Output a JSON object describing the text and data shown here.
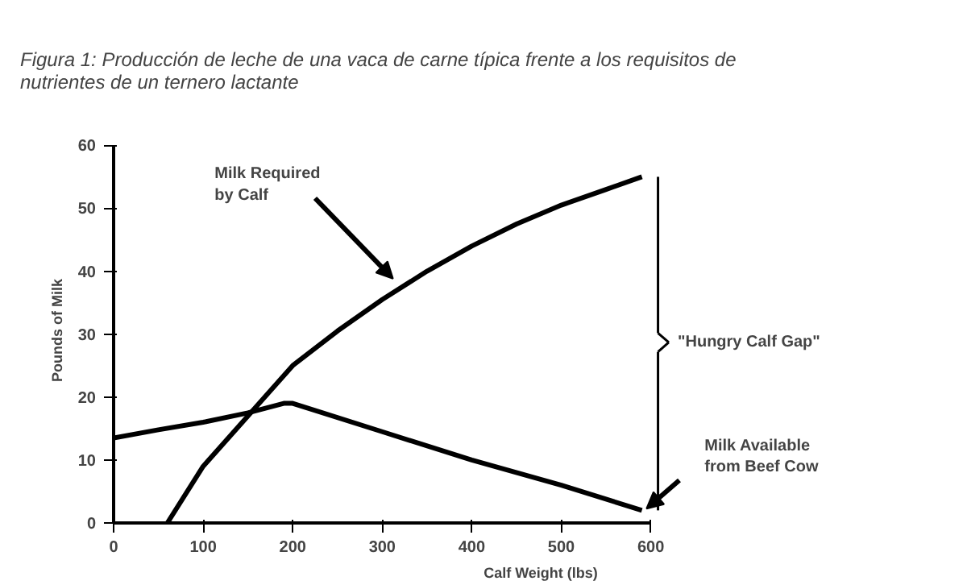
{
  "chart_data": {
    "type": "line",
    "title": "Figura 1:  Producción de leche de una vaca de carne típica frente a los requisitos de\nnutrientes de un ternero lactante",
    "xlabel": "Calf Weight (lbs)",
    "ylabel": "Pounds of Milk",
    "xlim": [
      0,
      600
    ],
    "ylim": [
      0,
      60
    ],
    "xticks": [
      0,
      100,
      200,
      300,
      400,
      500,
      600
    ],
    "yticks": [
      0,
      10,
      20,
      30,
      40,
      50,
      60
    ],
    "grid": false,
    "marker": "none",
    "line_style": "solid",
    "series": [
      {
        "color": "#000000",
        "x": [
          60,
          100,
          150,
          200,
          250,
          300,
          350,
          400,
          450,
          500,
          550,
          590
        ],
        "values": [
          0,
          9,
          17,
          25,
          30.5,
          35.5,
          40,
          44,
          47.5,
          50.5,
          53,
          55
        ]
      },
      {
        "color": "#000000",
        "x": [
          0,
          50,
          100,
          150,
          190,
          200,
          300,
          400,
          500,
          590
        ],
        "values": [
          13.5,
          14.8,
          16,
          17.5,
          19,
          19,
          14.5,
          10,
          6,
          2
        ]
      }
    ],
    "annotations": [
      "Milk Required\nby Calf",
      "\"Hungry Calf Gap\"",
      "Milk Available\nfrom Beef Cow"
    ]
  }
}
